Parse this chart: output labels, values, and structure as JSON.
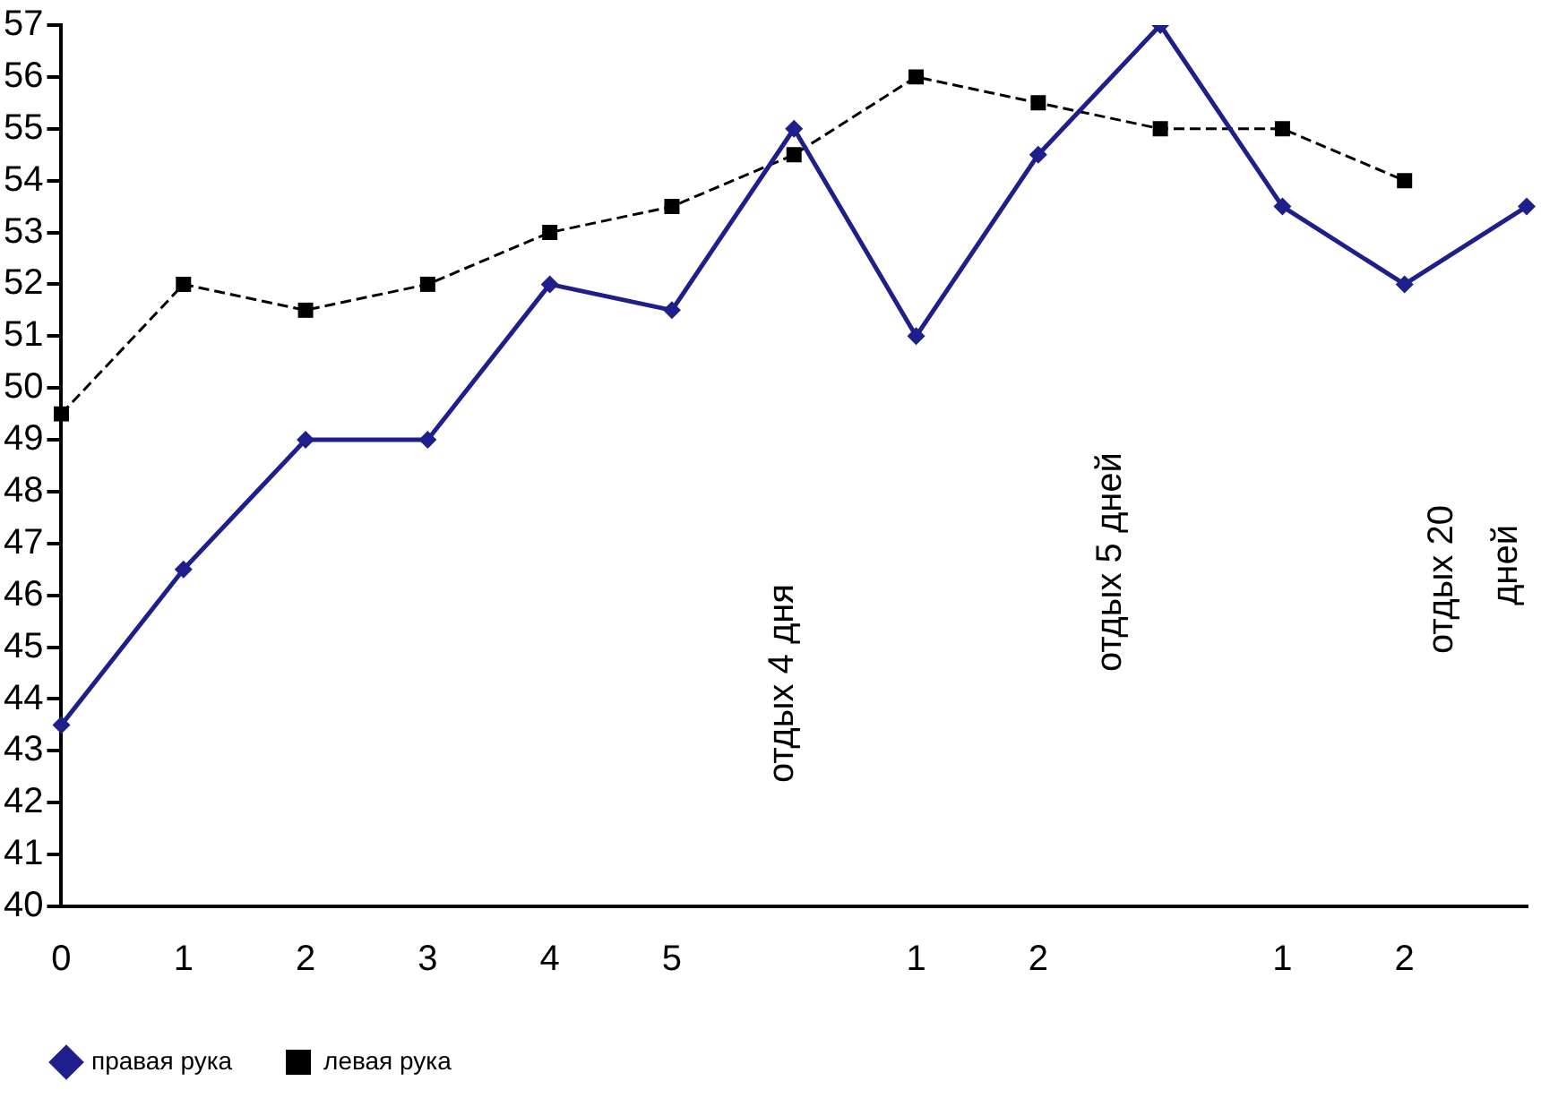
{
  "chart_data": {
    "type": "line",
    "categories": [
      "0",
      "1",
      "2",
      "3",
      "4",
      "5",
      null,
      "1",
      "2",
      null,
      "1",
      "2",
      null
    ],
    "series": [
      {
        "name": "правая рука",
        "color": "#1f1f8c",
        "marker": "diamond",
        "line_style": "solid",
        "values": [
          43.5,
          46.5,
          49,
          49,
          52,
          51.5,
          55,
          51,
          54.5,
          57,
          53.5,
          52,
          53.5
        ]
      },
      {
        "name": "левая рука",
        "color": "#000000",
        "marker": "square",
        "line_style": "dashed",
        "values": [
          49.5,
          52,
          51.5,
          52,
          53,
          53.5,
          54.5,
          56,
          55.5,
          55,
          55,
          54,
          null
        ]
      }
    ],
    "ylim": [
      40,
      57
    ],
    "yticks": [
      40,
      41,
      42,
      43,
      44,
      45,
      46,
      47,
      48,
      49,
      50,
      51,
      52,
      53,
      54,
      55,
      56,
      57
    ],
    "grid": false,
    "legend": "bottom left",
    "annotations": [
      "отдых 4 дня",
      "отдых 5 дней",
      "отдых 20 дней"
    ]
  }
}
